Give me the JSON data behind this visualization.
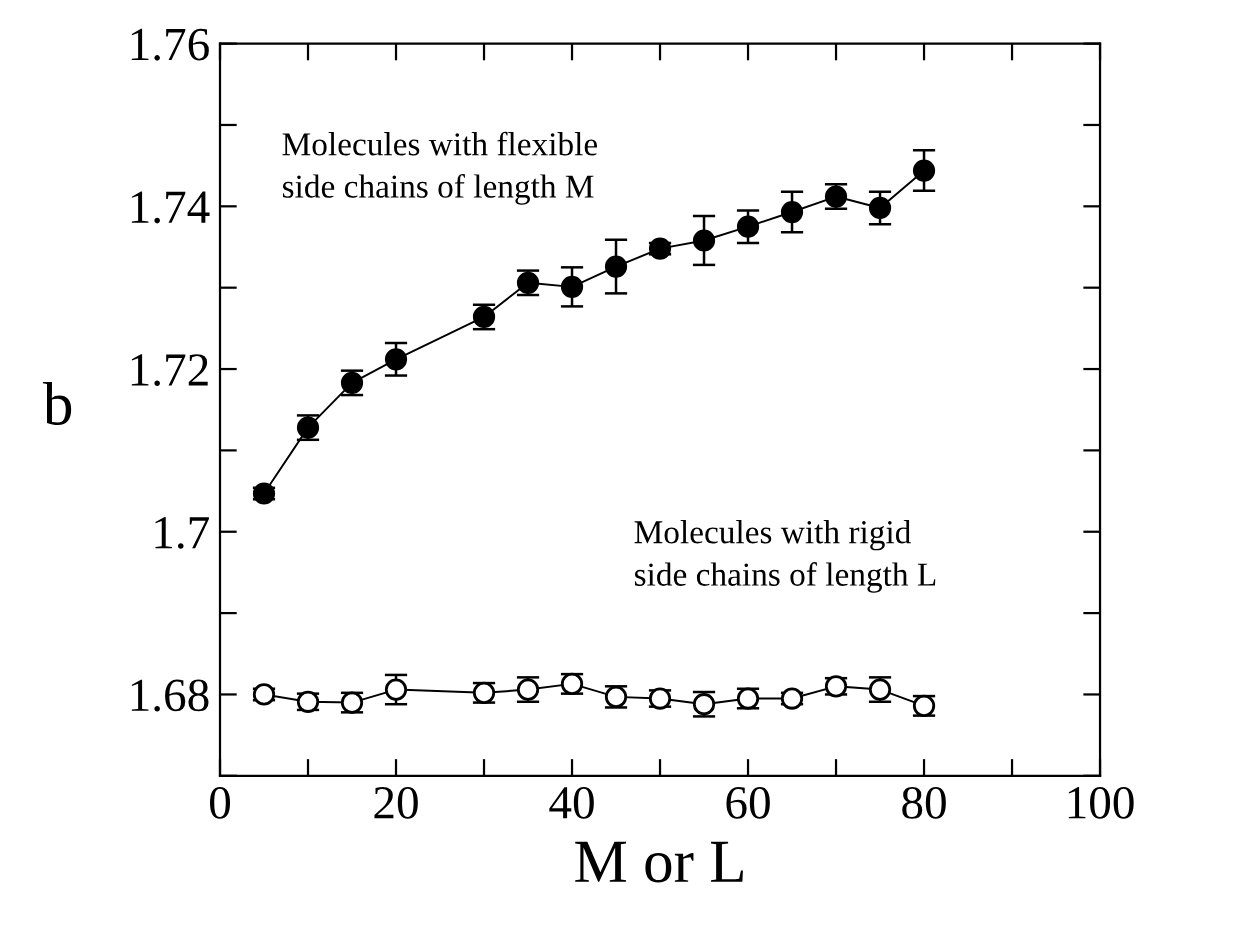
{
  "chart_data": {
    "type": "line",
    "xlabel": "M or L",
    "ylabel": "b",
    "x": [
      5,
      10,
      15,
      20,
      30,
      35,
      40,
      45,
      50,
      55,
      60,
      65,
      70,
      75,
      80
    ],
    "series": [
      {
        "color": "#000000",
        "marker": "circle",
        "values": [
          1.7047,
          1.7128,
          1.7183,
          1.7212,
          1.7264,
          1.7306,
          1.7301,
          1.7326,
          1.7348,
          1.7358,
          1.7375,
          1.7393,
          1.7412,
          1.7398,
          1.7444
        ],
        "errors": [
          0.0007,
          0.0015,
          0.0015,
          0.002,
          0.0015,
          0.0015,
          0.0024,
          0.0033,
          0.0007,
          0.003,
          0.002,
          0.0025,
          0.0015,
          0.002,
          0.0025
        ]
      },
      {
        "color": "#000000",
        "marker": "circle",
        "values": [
          1.68,
          1.6791,
          1.679,
          1.6806,
          1.6802,
          1.6806,
          1.6813,
          1.6797,
          1.6795,
          1.6788,
          1.6795,
          1.6795,
          1.681,
          1.6806,
          1.6786
        ],
        "errors": [
          0.0007,
          0.001,
          0.0012,
          0.0018,
          0.0012,
          0.0015,
          0.0012,
          0.0013,
          0.001,
          0.0015,
          0.0012,
          0.0007,
          0.001,
          0.0015,
          0.0012
        ]
      }
    ],
    "xlim": [
      0,
      100
    ],
    "xticks": [
      0,
      {
        "value": 10,
        "label": null
      },
      20,
      {
        "value": 30,
        "label": null
      },
      40,
      {
        "value": 50,
        "label": null
      },
      60,
      {
        "value": 70,
        "label": null
      },
      80,
      {
        "value": 90,
        "label": null
      },
      100
    ],
    "ylim": [
      1.67,
      1.76
    ],
    "yticks": [
      {
        "value": 1.67,
        "label": null
      },
      1.68,
      {
        "value": 1.69,
        "label": null
      },
      1.7,
      {
        "value": 1.71,
        "label": null
      },
      1.72,
      {
        "value": 1.73,
        "label": null
      },
      1.74,
      {
        "value": 1.75,
        "label": null
      },
      1.76
    ],
    "annotations": [
      "Molecules with flexible\nside chains of length M",
      "Molecules with rigid\nside chains of length L"
    ],
    "grid": false,
    "legend": false,
    "line_style": "solid"
  }
}
